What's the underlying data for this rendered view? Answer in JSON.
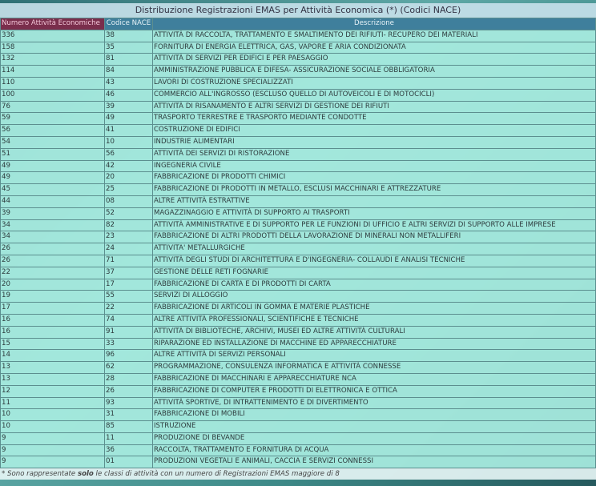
{
  "title": "Distribuzione Registrazioni EMAS per Attività Economica (*) (Codici NACE)",
  "table": {
    "headers": [
      "Numero Attività Economiche",
      "Codice NACE",
      "Descrizione"
    ],
    "rows": [
      [
        "336",
        "38",
        "ATTIVITÀ DI RACCOLTA, TRATTAMENTO E SMALTIMENTO DEI RIFIUTI- RECUPERO DEI MATERIALI"
      ],
      [
        "158",
        "35",
        "FORNITURA DI ENERGIA ELETTRICA, GAS, VAPORE E ARIA CONDIZIONATA"
      ],
      [
        "132",
        "81",
        "ATTIVITÀ DI SERVIZI PER EDIFICI E PER PAESAGGIO"
      ],
      [
        "114",
        "84",
        "AMMINISTRAZIONE PUBBLICA E DIFESA- ASSICURAZIONE SOCIALE OBBLIGATORIA"
      ],
      [
        "110",
        "43",
        "LAVORI DI COSTRUZIONE SPECIALIZZATI"
      ],
      [
        "100",
        "46",
        "COMMERCIO ALL'INGROSSO (ESCLUSO QUELLO DI AUTOVEICOLI E DI MOTOCICLI)"
      ],
      [
        "76",
        "39",
        "ATTIVITÀ DI RISANAMENTO E ALTRI SERVIZI DI GESTIONE DEI RIFIUTI"
      ],
      [
        "59",
        "49",
        "TRASPORTO TERRESTRE E TRASPORTO MEDIANTE CONDOTTE"
      ],
      [
        "56",
        "41",
        "COSTRUZIONE DI EDIFICI"
      ],
      [
        "54",
        "10",
        "INDUSTRIE ALIMENTARI"
      ],
      [
        "51",
        "56",
        "ATTIVITÀ DEI SERVIZI DI RISTORAZIONE"
      ],
      [
        "49",
        "42",
        "INGEGNERIA CIVILE"
      ],
      [
        "49",
        "20",
        "FABBRICAZIONE DI PRODOTTI CHIMICI"
      ],
      [
        "45",
        "25",
        "FABBRICAZIONE DI PRODOTTI IN METALLO, ESCLUSI MACCHINARI E ATTREZZATURE"
      ],
      [
        "44",
        "08",
        "ALTRE ATTIVITÀ ESTRATTIVE"
      ],
      [
        "39",
        "52",
        "MAGAZZINAGGIO E ATTIVITÀ DI SUPPORTO AI TRASPORTI"
      ],
      [
        "34",
        "82",
        "ATTIVITÀ AMMINISTRATIVE E DI SUPPORTO PER LE FUNZIONI DI UFFICIO E ALTRI SERVIZI DI SUPPORTO ALLE IMPRESE"
      ],
      [
        "34",
        "23",
        "FABBRICAZIONE DI ALTRI PRODOTTI DELLA LAVORAZIONE DI MINERALI NON METALLIFERI"
      ],
      [
        "26",
        "24",
        "ATTIVITA' METALLURGICHE"
      ],
      [
        "26",
        "71",
        "ATTIVITÀ DEGLI STUDI DI ARCHITETTURA E D'INGEGNERIA- COLLAUDI E ANALISI TECNICHE"
      ],
      [
        "22",
        "37",
        "GESTIONE DELLE RETI FOGNARIE"
      ],
      [
        "20",
        "17",
        "FABBRICAZIONE DI CARTA E DI PRODOTTI DI CARTA"
      ],
      [
        "19",
        "55",
        "SERVIZI DI ALLOGGIO"
      ],
      [
        "17",
        "22",
        "FABBRICAZIONE DI ARTICOLI IN GOMMA E MATERIE PLASTICHE"
      ],
      [
        "16",
        "74",
        "ALTRE ATTIVITÀ PROFESSIONALI, SCIENTIFICHE E TECNICHE"
      ],
      [
        "16",
        "91",
        "ATTIVITÀ DI BIBLIOTECHE, ARCHIVI, MUSEI ED ALTRE ATTIVITÀ CULTURALI"
      ],
      [
        "15",
        "33",
        "RIPARAZIONE ED INSTALLAZIONE DI MACCHINE ED APPARECCHIATURE"
      ],
      [
        "14",
        "96",
        "ALTRE ATTIVITÀ DI SERVIZI PERSONALI"
      ],
      [
        "13",
        "62",
        "PROGRAMMAZIONE, CONSULENZA INFORMATICA E ATTIVITÀ CONNESSE"
      ],
      [
        "13",
        "28",
        "FABBRICAZIONE DI MACCHINARI E APPARECCHIATURE NCA"
      ],
      [
        "12",
        "26",
        "FABBRICAZIONE DI COMPUTER E PRODOTTI DI ELETTRONICA E OTTICA"
      ],
      [
        "11",
        "93",
        "ATTIVITÀ SPORTIVE, DI INTRATTENIMENTO E DI DIVERTIMENTO"
      ],
      [
        "10",
        "31",
        "FABBRICAZIONE DI MOBILI"
      ],
      [
        "10",
        "85",
        "ISTRUZIONE"
      ],
      [
        "9",
        "11",
        "PRODUZIONE DI BEVANDE"
      ],
      [
        "9",
        "36",
        "RACCOLTA, TRATTAMENTO E FORNITURA DI ACQUA"
      ],
      [
        "9",
        "01",
        "PRODUZIONI VEGETALI E ANIMALI, CACCIA E SERVIZI CONNESSI"
      ]
    ]
  },
  "footnote": {
    "before": "* Sono rappresentate ",
    "emphasis": "solo",
    "after": " le classi di attività con un numero di Registrazioni EMAS maggiore di 8"
  }
}
